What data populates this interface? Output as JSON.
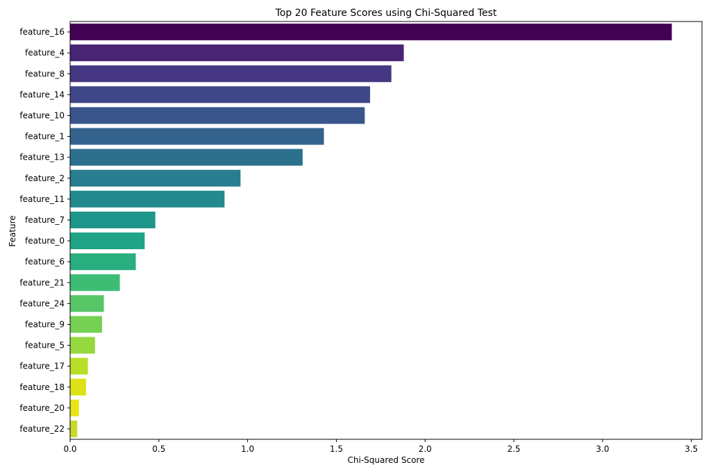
{
  "chart_data": {
    "type": "bar",
    "orientation": "horizontal",
    "title": "Top 20 Feature Scores using Chi-Squared Test",
    "xlabel": "Chi-Squared Score",
    "ylabel": "Feature",
    "xlim": [
      0,
      3.56
    ],
    "xticks": [
      0.0,
      0.5,
      1.0,
      1.5,
      2.0,
      2.5,
      3.0,
      3.5
    ],
    "xtick_labels": [
      "0.0",
      "0.5",
      "1.0",
      "1.5",
      "2.0",
      "2.5",
      "3.0",
      "3.5"
    ],
    "grid": false,
    "categories": [
      "feature_16",
      "feature_4",
      "feature_8",
      "feature_14",
      "feature_10",
      "feature_1",
      "feature_13",
      "feature_2",
      "feature_11",
      "feature_7",
      "feature_0",
      "feature_6",
      "feature_21",
      "feature_24",
      "feature_9",
      "feature_5",
      "feature_17",
      "feature_18",
      "feature_20",
      "feature_22"
    ],
    "values": [
      3.39,
      1.88,
      1.81,
      1.69,
      1.66,
      1.43,
      1.31,
      0.96,
      0.87,
      0.48,
      0.42,
      0.37,
      0.28,
      0.19,
      0.18,
      0.14,
      0.1,
      0.09,
      0.05,
      0.04
    ],
    "colors": [
      "#440154",
      "#482475",
      "#453781",
      "#3f4788",
      "#39558c",
      "#33638d",
      "#2d708e",
      "#287d8e",
      "#238a8d",
      "#1f968b",
      "#20a386",
      "#29af7f",
      "#3dbc74",
      "#56c667",
      "#75d054",
      "#95d840",
      "#b8de29",
      "#dde318",
      "#e8e419",
      "#c9d92b"
    ]
  }
}
